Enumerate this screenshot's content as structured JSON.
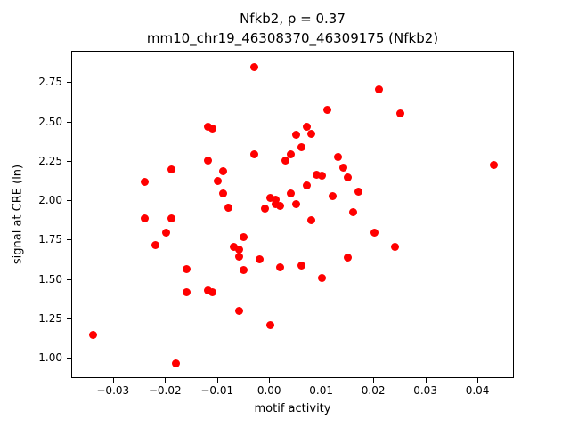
{
  "chart_data": {
    "type": "scatter",
    "title_line1": "Nfkb2, ρ = 0.37",
    "title_line2": "mm10_chr19_46308370_46309175 (Nfkb2)",
    "xlabel": "motif activity",
    "ylabel": "signal at CRE (ln)",
    "marker_color": "#ff0000",
    "legend": "none",
    "grid": false,
    "xlim": [
      -0.038,
      0.047
    ],
    "ylim": [
      0.87,
      2.95
    ],
    "xticks": [
      -0.03,
      -0.02,
      -0.01,
      0.0,
      0.01,
      0.02,
      0.03,
      0.04
    ],
    "xtick_labels": [
      "−0.03",
      "−0.02",
      "−0.01",
      "0.00",
      "0.01",
      "0.02",
      "0.03",
      "0.04"
    ],
    "yticks": [
      1.0,
      1.25,
      1.5,
      1.75,
      2.0,
      2.25,
      2.5,
      2.75
    ],
    "ytick_labels": [
      "1.00",
      "1.25",
      "1.50",
      "1.75",
      "2.00",
      "2.25",
      "2.50",
      "2.75"
    ],
    "points": [
      [
        -0.034,
        1.15
      ],
      [
        -0.024,
        2.12
      ],
      [
        -0.024,
        1.89
      ],
      [
        -0.022,
        1.72
      ],
      [
        -0.02,
        1.8
      ],
      [
        -0.019,
        2.2
      ],
      [
        -0.019,
        1.89
      ],
      [
        -0.018,
        0.97
      ],
      [
        -0.016,
        1.57
      ],
      [
        -0.016,
        1.42
      ],
      [
        -0.012,
        2.47
      ],
      [
        -0.011,
        2.46
      ],
      [
        -0.012,
        2.26
      ],
      [
        -0.012,
        1.43
      ],
      [
        -0.011,
        1.42
      ],
      [
        -0.01,
        2.13
      ],
      [
        -0.009,
        2.19
      ],
      [
        -0.009,
        2.05
      ],
      [
        -0.008,
        1.96
      ],
      [
        -0.007,
        1.71
      ],
      [
        -0.006,
        1.65
      ],
      [
        -0.006,
        1.69
      ],
      [
        -0.006,
        1.3
      ],
      [
        -0.005,
        1.77
      ],
      [
        -0.005,
        1.56
      ],
      [
        -0.003,
        2.85
      ],
      [
        -0.003,
        2.3
      ],
      [
        -0.002,
        1.63
      ],
      [
        -0.001,
        1.95
      ],
      [
        0.0,
        2.02
      ],
      [
        0.0,
        1.21
      ],
      [
        0.001,
        1.98
      ],
      [
        0.001,
        2.01
      ],
      [
        0.002,
        1.97
      ],
      [
        0.002,
        1.58
      ],
      [
        0.003,
        2.26
      ],
      [
        0.004,
        2.3
      ],
      [
        0.004,
        2.05
      ],
      [
        0.005,
        2.42
      ],
      [
        0.005,
        1.98
      ],
      [
        0.006,
        2.34
      ],
      [
        0.006,
        1.59
      ],
      [
        0.007,
        2.47
      ],
      [
        0.007,
        2.1
      ],
      [
        0.008,
        2.43
      ],
      [
        0.008,
        1.88
      ],
      [
        0.009,
        2.17
      ],
      [
        0.01,
        2.16
      ],
      [
        0.01,
        1.51
      ],
      [
        0.011,
        2.58
      ],
      [
        0.012,
        2.03
      ],
      [
        0.013,
        2.28
      ],
      [
        0.014,
        2.21
      ],
      [
        0.015,
        2.15
      ],
      [
        0.015,
        1.64
      ],
      [
        0.016,
        1.93
      ],
      [
        0.017,
        2.06
      ],
      [
        0.02,
        1.8
      ],
      [
        0.021,
        2.71
      ],
      [
        0.024,
        1.71
      ],
      [
        0.025,
        2.56
      ],
      [
        0.043,
        2.23
      ]
    ]
  }
}
